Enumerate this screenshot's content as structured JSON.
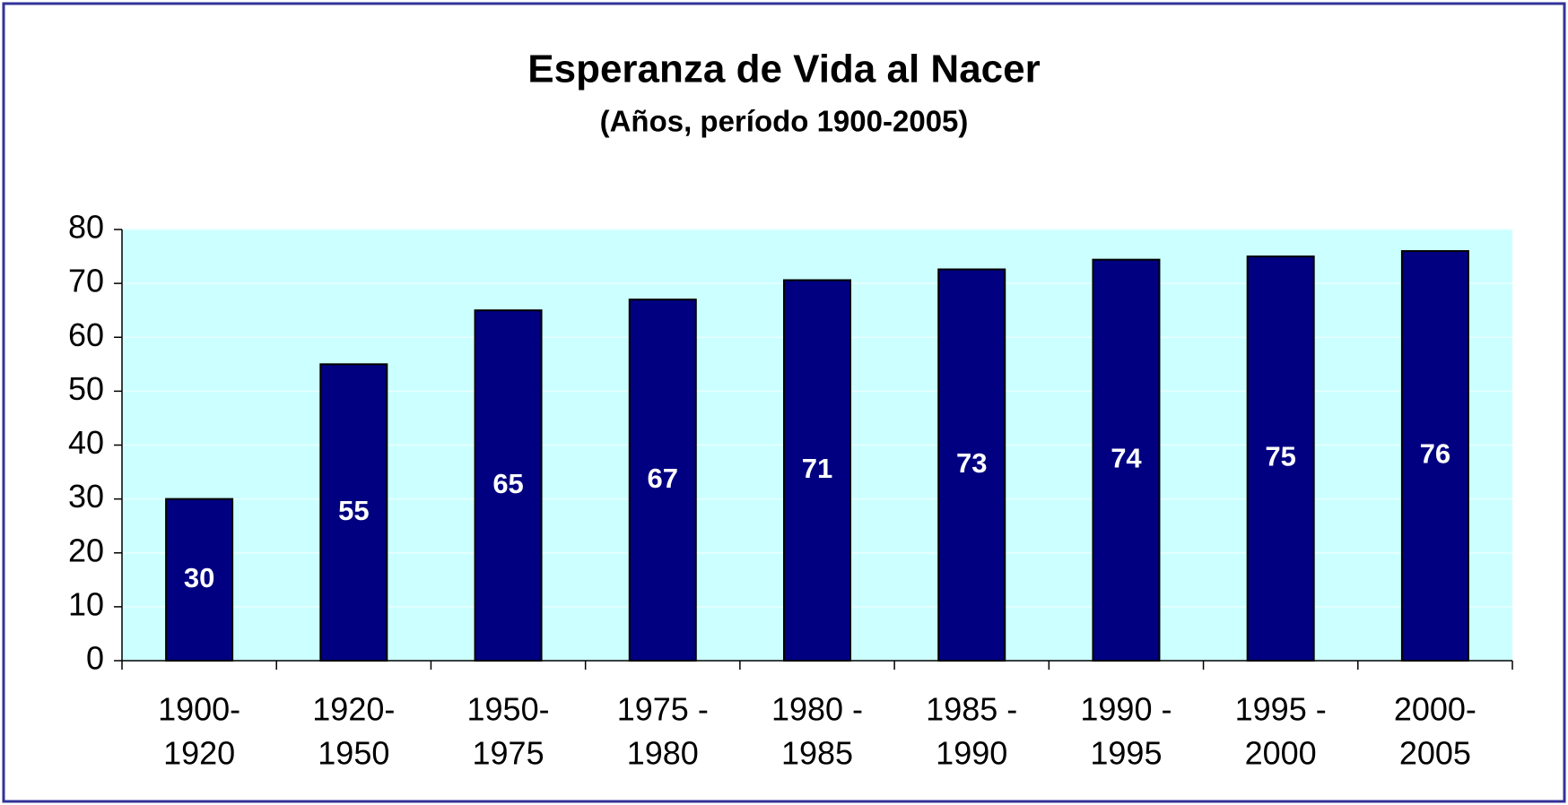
{
  "chart_data": {
    "type": "bar",
    "title": "Esperanza de Vida al Nacer",
    "subtitle": "(Años, período 1900-2005)",
    "categories": [
      [
        "1900-",
        "1920"
      ],
      [
        "1920-",
        "1950"
      ],
      [
        "1950-",
        "1975"
      ],
      [
        "1975 -",
        "1980"
      ],
      [
        "1980 -",
        "1985"
      ],
      [
        "1985 -",
        "1990"
      ],
      [
        "1990 -",
        "1995"
      ],
      [
        "1995 -",
        "2000"
      ],
      [
        "2000-",
        "2005"
      ]
    ],
    "values": [
      30,
      55,
      65,
      67,
      70.6,
      72.6,
      74.4,
      75,
      76
    ],
    "value_labels": [
      "30",
      "55",
      "65",
      "67",
      "71",
      "73",
      "74",
      "75",
      "76"
    ],
    "color": "#000080",
    "ylim": [
      0,
      80
    ],
    "yticks": [
      0,
      10,
      20,
      30,
      40,
      50,
      60,
      70,
      80
    ],
    "grid": true
  }
}
